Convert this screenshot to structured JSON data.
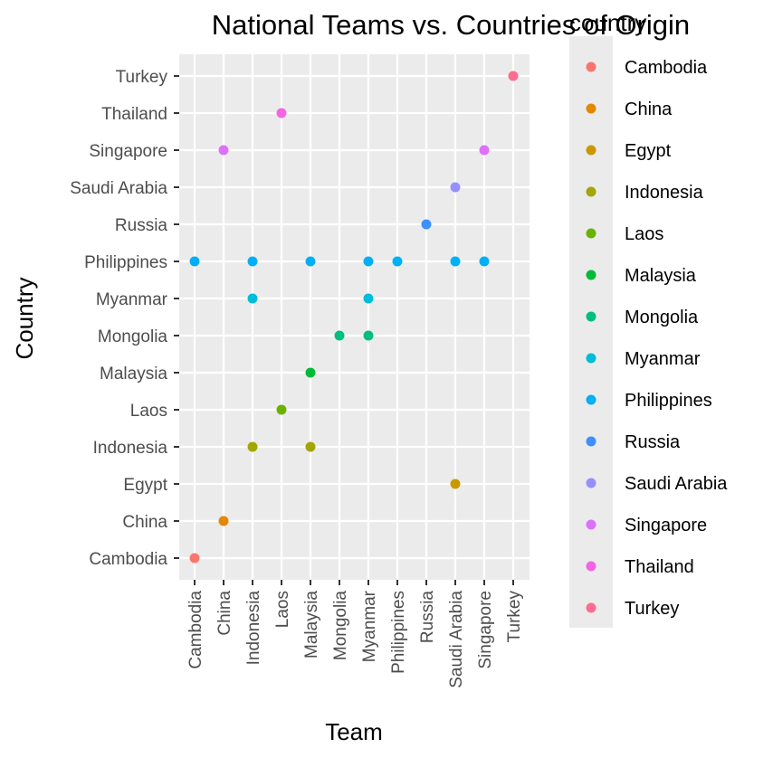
{
  "chart_data": {
    "type": "scatter",
    "title": "National Teams vs. Countries of Origin",
    "xlabel": "Team",
    "ylabel": "Country",
    "x_categories": [
      "Cambodia",
      "China",
      "Indonesia",
      "Laos",
      "Malaysia",
      "Mongolia",
      "Myanmar",
      "Philippines",
      "Russia",
      "Saudi Arabia",
      "Singapore",
      "Turkey"
    ],
    "y_categories": [
      "Cambodia",
      "China",
      "Egypt",
      "Indonesia",
      "Laos",
      "Malaysia",
      "Mongolia",
      "Myanmar",
      "Philippines",
      "Russia",
      "Saudi Arabia",
      "Singapore",
      "Thailand",
      "Turkey"
    ],
    "legend": {
      "title": "country",
      "placement": "right",
      "entries": [
        {
          "label": "Cambodia",
          "color": "#F8766D"
        },
        {
          "label": "China",
          "color": "#E58700"
        },
        {
          "label": "Egypt",
          "color": "#C99800"
        },
        {
          "label": "Indonesia",
          "color": "#A3A500"
        },
        {
          "label": "Laos",
          "color": "#6BB100"
        },
        {
          "label": "Malaysia",
          "color": "#00BA38"
        },
        {
          "label": "Mongolia",
          "color": "#00BF7D"
        },
        {
          "label": "Myanmar",
          "color": "#00BCD8"
        },
        {
          "label": "Philippines",
          "color": "#00B0F6"
        },
        {
          "label": "Russia",
          "color": "#3F8FFF"
        },
        {
          "label": "Saudi Arabia",
          "color": "#9590FF"
        },
        {
          "label": "Singapore",
          "color": "#DC71FA"
        },
        {
          "label": "Thailand",
          "color": "#F564E3"
        },
        {
          "label": "Turkey",
          "color": "#FF6C91"
        }
      ]
    },
    "grid": true,
    "points": [
      {
        "team": "Cambodia",
        "country": "Cambodia"
      },
      {
        "team": "Cambodia",
        "country": "Philippines"
      },
      {
        "team": "China",
        "country": "China"
      },
      {
        "team": "China",
        "country": "Singapore"
      },
      {
        "team": "Indonesia",
        "country": "Indonesia"
      },
      {
        "team": "Indonesia",
        "country": "Myanmar"
      },
      {
        "team": "Indonesia",
        "country": "Philippines"
      },
      {
        "team": "Laos",
        "country": "Laos"
      },
      {
        "team": "Laos",
        "country": "Thailand"
      },
      {
        "team": "Malaysia",
        "country": "Indonesia"
      },
      {
        "team": "Malaysia",
        "country": "Malaysia"
      },
      {
        "team": "Malaysia",
        "country": "Philippines"
      },
      {
        "team": "Mongolia",
        "country": "Mongolia"
      },
      {
        "team": "Myanmar",
        "country": "Mongolia"
      },
      {
        "team": "Myanmar",
        "country": "Myanmar"
      },
      {
        "team": "Myanmar",
        "country": "Philippines"
      },
      {
        "team": "Philippines",
        "country": "Philippines"
      },
      {
        "team": "Russia",
        "country": "Russia"
      },
      {
        "team": "Saudi Arabia",
        "country": "Egypt"
      },
      {
        "team": "Saudi Arabia",
        "country": "Philippines"
      },
      {
        "team": "Saudi Arabia",
        "country": "Saudi Arabia"
      },
      {
        "team": "Singapore",
        "country": "Philippines"
      },
      {
        "team": "Singapore",
        "country": "Singapore"
      },
      {
        "team": "Turkey",
        "country": "Turkey"
      }
    ]
  }
}
